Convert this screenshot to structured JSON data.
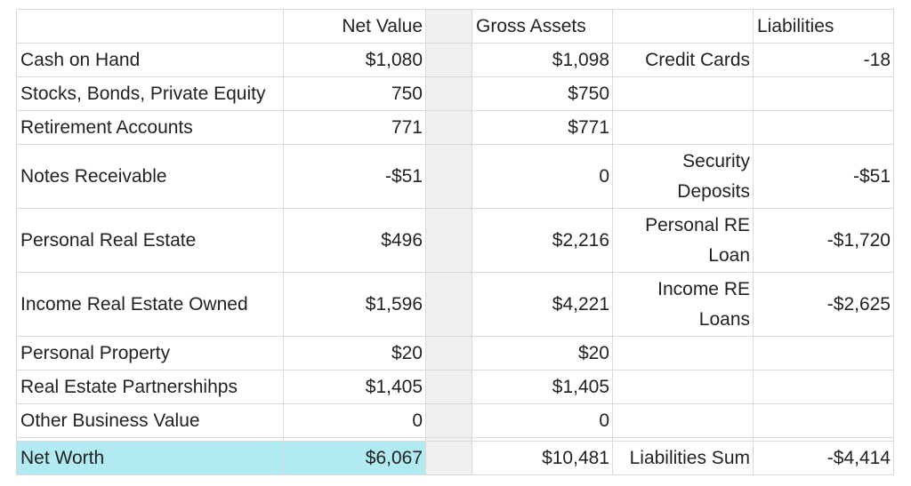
{
  "headers": {
    "net_value": "Net Value",
    "gross_assets": "Gross Assets",
    "liabilities": "Liabilities"
  },
  "rows": [
    {
      "label": "Cash on Hand",
      "net": "$1,080",
      "gross": "$1,098",
      "liab_label": "Credit Cards",
      "liab_value": "-18"
    },
    {
      "label": "Stocks, Bonds, Private Equity",
      "net": "750",
      "gross": "$750",
      "liab_label": "",
      "liab_value": ""
    },
    {
      "label": "Retirement Accounts",
      "net": "771",
      "gross": "$771",
      "liab_label": "",
      "liab_value": ""
    },
    {
      "label": "Notes Receivable",
      "net": "-$51",
      "gross": "0",
      "liab_label_line1": "Security",
      "liab_label_line2": "Deposits",
      "liab_value": "-$51"
    },
    {
      "label": "Personal Real Estate",
      "net": "$496",
      "gross": "$2,216",
      "liab_label_line1": "Personal RE",
      "liab_label_line2": "Loan",
      "liab_value": "-$1,720"
    },
    {
      "label": "Income Real Estate Owned",
      "net": "$1,596",
      "gross": "$4,221",
      "liab_label_line1": "Income RE",
      "liab_label_line2": "Loans",
      "liab_value": "-$2,625"
    },
    {
      "label": "Personal Property",
      "net": "$20",
      "gross": "$20",
      "liab_label": "",
      "liab_value": ""
    },
    {
      "label": "Real Estate Partnershihps",
      "net": "$1,405",
      "gross": "$1,405",
      "liab_label": "",
      "liab_value": ""
    },
    {
      "label": "Other Business Value",
      "net": "0",
      "gross": "0",
      "liab_label": "",
      "liab_value": ""
    }
  ],
  "total": {
    "label": "Net Worth",
    "net": "$6,067",
    "gross": "$10,481",
    "liab_label": "Liabilities Sum",
    "liab_value": "-$4,414"
  },
  "colors": {
    "highlight": "#b2eaf2",
    "gap_column": "#f0f0f0",
    "grid": "#d9d9d9"
  }
}
